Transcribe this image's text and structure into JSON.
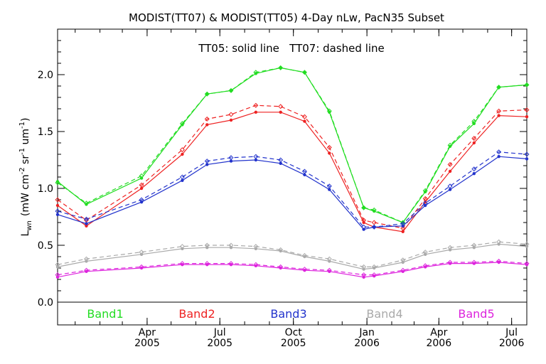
{
  "chart_data": {
    "type": "line",
    "title": "MODIST(TT07) & MODIST(TT05) 4-Day nLw, PacN35 Subset",
    "annotation": "TT05: solid line   TT07: dashed line",
    "ylabel": "L_wn (mW cm^-2 sr^-1 um^-1)",
    "ylabel_main": "L",
    "ylabel_sub": "wn",
    "ylabel_rest": "(mW cm",
    "ylabel_exp1": "-2",
    "ylabel_mid": " sr",
    "ylabel_exp2": "-1",
    "ylabel_mid2": " um",
    "ylabel_exp3": "-1",
    "ylabel_end": ")",
    "xlabel": "",
    "ylim": [
      -0.2,
      2.4
    ],
    "yticks": [
      "0.0",
      "0.5",
      "1.0",
      "1.5",
      "2.0"
    ],
    "ytick_values": [
      0.0,
      0.5,
      1.0,
      1.5,
      2.0
    ],
    "xlim": [
      "2004-12-10",
      "2006-07-20"
    ],
    "xticks": [
      {
        "date": "2005-04-01",
        "label1": "Apr",
        "label2": "2005"
      },
      {
        "date": "2005-07-01",
        "label1": "Jul",
        "label2": "2005"
      },
      {
        "date": "2005-10-01",
        "label1": "Oct",
        "label2": "2005"
      },
      {
        "date": "2006-01-01",
        "label1": "Jan",
        "label2": "2006"
      },
      {
        "date": "2006-04-01",
        "label1": "Apr",
        "label2": "2006"
      },
      {
        "date": "2006-07-01",
        "label1": "Jul",
        "label2": "2006"
      }
    ],
    "grid": false,
    "legend": "bottom",
    "series": [
      {
        "name": "Band1",
        "color": "#22dd22",
        "solid": {
          "x": [
            "2004-12-10",
            "2005-01-15",
            "2005-03-25",
            "2005-05-15",
            "2005-06-15",
            "2005-07-15",
            "2005-08-15",
            "2005-09-15",
            "2005-10-15",
            "2005-11-15",
            "2005-12-28",
            "2006-01-10",
            "2006-02-15",
            "2006-03-15",
            "2006-04-15",
            "2006-05-15",
            "2006-06-15",
            "2006-07-20"
          ],
          "y": [
            1.06,
            0.86,
            1.09,
            1.56,
            1.83,
            1.86,
            2.01,
            2.06,
            2.02,
            1.67,
            0.83,
            0.8,
            0.7,
            0.97,
            1.37,
            1.57,
            1.89,
            1.91
          ]
        },
        "dashed": {
          "x": [
            "2004-12-10",
            "2005-01-15",
            "2005-03-25",
            "2005-05-15",
            "2005-06-15",
            "2005-07-15",
            "2005-08-15",
            "2005-09-15",
            "2005-10-15",
            "2005-11-15",
            "2005-12-28",
            "2006-01-10",
            "2006-02-15",
            "2006-03-15",
            "2006-04-15",
            "2006-05-15",
            "2006-06-15",
            "2006-07-20"
          ],
          "y": [
            1.05,
            0.87,
            1.11,
            1.57,
            1.83,
            1.86,
            2.02,
            2.06,
            2.02,
            1.68,
            0.83,
            0.81,
            0.7,
            0.98,
            1.38,
            1.59,
            1.89,
            1.91
          ]
        }
      },
      {
        "name": "Band2",
        "color": "#ee2222",
        "solid": {
          "x": [
            "2004-12-10",
            "2005-01-15",
            "2005-03-25",
            "2005-05-15",
            "2005-06-15",
            "2005-07-15",
            "2005-08-15",
            "2005-09-15",
            "2005-10-15",
            "2005-11-15",
            "2005-12-28",
            "2006-01-10",
            "2006-02-15",
            "2006-03-15",
            "2006-04-15",
            "2006-05-15",
            "2006-06-15",
            "2006-07-20"
          ],
          "y": [
            0.85,
            0.67,
            1.0,
            1.3,
            1.56,
            1.6,
            1.67,
            1.67,
            1.59,
            1.31,
            0.7,
            0.66,
            0.62,
            0.88,
            1.15,
            1.4,
            1.64,
            1.63
          ]
        },
        "dashed": {
          "x": [
            "2004-12-10",
            "2005-01-15",
            "2005-03-25",
            "2005-05-15",
            "2005-06-15",
            "2005-07-15",
            "2005-08-15",
            "2005-09-15",
            "2005-10-15",
            "2005-11-15",
            "2005-12-28",
            "2006-01-10",
            "2006-02-15",
            "2006-03-15",
            "2006-04-15",
            "2006-05-15",
            "2006-06-15",
            "2006-07-20"
          ],
          "y": [
            0.9,
            0.72,
            1.03,
            1.34,
            1.61,
            1.65,
            1.73,
            1.72,
            1.63,
            1.36,
            0.72,
            0.7,
            0.65,
            0.91,
            1.21,
            1.44,
            1.68,
            1.69
          ]
        }
      },
      {
        "name": "Band3",
        "color": "#2233cc",
        "solid": {
          "x": [
            "2004-12-10",
            "2005-01-15",
            "2005-03-25",
            "2005-05-15",
            "2005-06-15",
            "2005-07-15",
            "2005-08-15",
            "2005-09-15",
            "2005-10-15",
            "2005-11-15",
            "2005-12-28",
            "2006-01-10",
            "2006-02-15",
            "2006-03-15",
            "2006-04-15",
            "2006-05-15",
            "2006-06-15",
            "2006-07-20"
          ],
          "y": [
            0.77,
            0.69,
            0.88,
            1.07,
            1.21,
            1.24,
            1.25,
            1.22,
            1.12,
            0.99,
            0.64,
            0.66,
            0.67,
            0.85,
            0.99,
            1.13,
            1.28,
            1.26
          ]
        },
        "dashed": {
          "x": [
            "2004-12-10",
            "2005-01-15",
            "2005-03-25",
            "2005-05-15",
            "2005-06-15",
            "2005-07-15",
            "2005-08-15",
            "2005-09-15",
            "2005-10-15",
            "2005-11-15",
            "2005-12-28",
            "2006-01-10",
            "2006-02-15",
            "2006-03-15",
            "2006-04-15",
            "2006-05-15",
            "2006-06-15",
            "2006-07-20"
          ],
          "y": [
            0.8,
            0.73,
            0.9,
            1.1,
            1.24,
            1.27,
            1.28,
            1.25,
            1.15,
            1.02,
            0.66,
            0.66,
            0.69,
            0.87,
            1.02,
            1.17,
            1.32,
            1.3
          ]
        }
      },
      {
        "name": "Band4",
        "color": "#aaaaaa",
        "solid": {
          "x": [
            "2004-12-10",
            "2005-01-15",
            "2005-03-25",
            "2005-05-15",
            "2005-06-15",
            "2005-07-15",
            "2005-08-15",
            "2005-09-15",
            "2005-10-15",
            "2005-11-15",
            "2005-12-28",
            "2006-01-10",
            "2006-02-15",
            "2006-03-15",
            "2006-04-15",
            "2006-05-15",
            "2006-06-15",
            "2006-07-20"
          ],
          "y": [
            0.31,
            0.36,
            0.42,
            0.47,
            0.48,
            0.48,
            0.47,
            0.45,
            0.4,
            0.36,
            0.29,
            0.3,
            0.35,
            0.42,
            0.46,
            0.48,
            0.51,
            0.49
          ]
        },
        "dashed": {
          "x": [
            "2004-12-10",
            "2005-01-15",
            "2005-03-25",
            "2005-05-15",
            "2005-06-15",
            "2005-07-15",
            "2005-08-15",
            "2005-09-15",
            "2005-10-15",
            "2005-11-15",
            "2005-12-28",
            "2006-01-10",
            "2006-02-15",
            "2006-03-15",
            "2006-04-15",
            "2006-05-15",
            "2006-06-15",
            "2006-07-20"
          ],
          "y": [
            0.33,
            0.38,
            0.44,
            0.49,
            0.5,
            0.5,
            0.49,
            0.46,
            0.41,
            0.38,
            0.31,
            0.31,
            0.37,
            0.44,
            0.48,
            0.5,
            0.53,
            0.51
          ]
        }
      },
      {
        "name": "Band5",
        "color": "#dd22dd",
        "solid": {
          "x": [
            "2004-12-10",
            "2005-01-15",
            "2005-03-25",
            "2005-05-15",
            "2005-06-15",
            "2005-07-15",
            "2005-08-15",
            "2005-09-15",
            "2005-10-15",
            "2005-11-15",
            "2005-12-28",
            "2006-01-10",
            "2006-02-15",
            "2006-03-15",
            "2006-04-15",
            "2006-05-15",
            "2006-06-15",
            "2006-07-20"
          ],
          "y": [
            0.22,
            0.27,
            0.3,
            0.33,
            0.33,
            0.33,
            0.32,
            0.3,
            0.28,
            0.27,
            0.22,
            0.23,
            0.27,
            0.31,
            0.34,
            0.34,
            0.35,
            0.33
          ]
        },
        "dashed": {
          "x": [
            "2004-12-10",
            "2005-01-15",
            "2005-03-25",
            "2005-05-15",
            "2005-06-15",
            "2005-07-15",
            "2005-08-15",
            "2005-09-15",
            "2005-10-15",
            "2005-11-15",
            "2005-12-28",
            "2006-01-10",
            "2006-02-15",
            "2006-03-15",
            "2006-04-15",
            "2006-05-15",
            "2006-06-15",
            "2006-07-20"
          ],
          "y": [
            0.24,
            0.28,
            0.31,
            0.34,
            0.34,
            0.34,
            0.33,
            0.31,
            0.29,
            0.28,
            0.24,
            0.24,
            0.28,
            0.32,
            0.35,
            0.35,
            0.36,
            0.34
          ]
        }
      }
    ]
  }
}
